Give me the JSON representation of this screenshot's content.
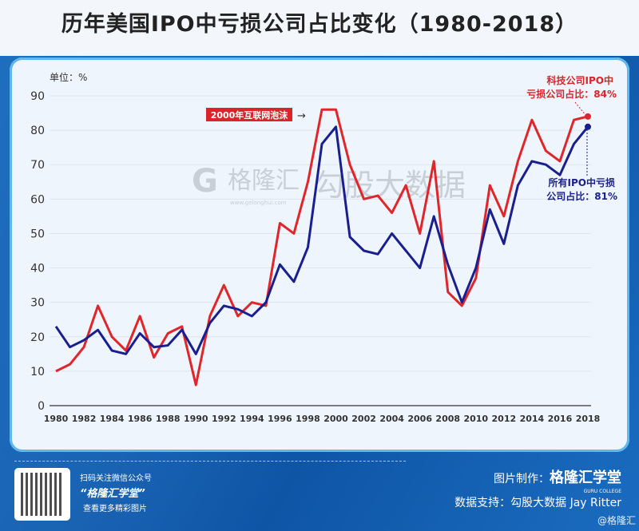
{
  "title": "历年美国IPO中亏损公司占比变化（1980-2018）",
  "chart_data": {
    "type": "line",
    "title": "历年美国IPO中亏损公司占比变化（1980-2018）",
    "ylabel": "单位：%",
    "ylim": [
      0,
      90
    ],
    "yticks": [
      0,
      10,
      20,
      30,
      40,
      50,
      60,
      70,
      80,
      90
    ],
    "xlim": [
      1980,
      2018
    ],
    "xticks": [
      "1980",
      "1982",
      "1984",
      "1986",
      "1988",
      "1990",
      "1992",
      "1994",
      "1996",
      "1998",
      "2000",
      "2002",
      "2004",
      "2006",
      "2008",
      "2010",
      "2012",
      "2014",
      "2016",
      "2018"
    ],
    "grid": true,
    "x": [
      1980,
      1981,
      1982,
      1983,
      1984,
      1985,
      1986,
      1987,
      1988,
      1989,
      1990,
      1991,
      1992,
      1993,
      1994,
      1995,
      1996,
      1997,
      1998,
      1999,
      2000,
      2001,
      2002,
      2003,
      2004,
      2005,
      2006,
      2007,
      2008,
      2009,
      2010,
      2011,
      2012,
      2013,
      2014,
      2015,
      2016,
      2017,
      2018
    ],
    "series": [
      {
        "name": "科技公司IPO中亏损公司占比",
        "color": "#e0262b",
        "values": [
          10,
          12,
          17,
          29,
          20,
          16,
          26,
          14,
          21,
          23,
          6,
          26,
          35,
          26,
          30,
          29,
          53,
          50,
          65,
          86,
          86,
          70,
          60,
          61,
          56,
          64,
          50,
          71,
          33,
          29,
          37,
          64,
          55,
          71,
          83,
          74,
          71,
          83,
          84
        ]
      },
      {
        "name": "所有IPO中亏损公司占比",
        "color": "#1a1f8f",
        "values": [
          23,
          17,
          19,
          22,
          16,
          15,
          21,
          17,
          17.5,
          22,
          15,
          24,
          29,
          28,
          26,
          30,
          41,
          36,
          46,
          76,
          81,
          49,
          45,
          44,
          50,
          45,
          40,
          55,
          41,
          30,
          40,
          57,
          47,
          64,
          71,
          70,
          67,
          76,
          81
        ]
      }
    ],
    "annotations": {
      "bubble": "2000年互联网泡沫",
      "tech_line1": "科技公司IPO中",
      "tech_line2": "亏损公司占比：84%",
      "all_line1": "所有IPO中亏损",
      "all_line2": "公司占比：81%"
    }
  },
  "watermark": {
    "brand": "格隆汇",
    "url": "www.gelonghui.com",
    "data": "勾股大数据"
  },
  "footer": {
    "qr_line1": "扫码关注微信公众号",
    "qr_line2": "“格隆汇学堂”",
    "qr_line3": "查看更多精彩图片",
    "made_by_label": "图片制作：",
    "made_by": "格隆汇学堂",
    "college": "GURU COLLEGE",
    "source": "数据支持：勾股大数据  Jay Ritter",
    "handle": "@格隆汇"
  }
}
